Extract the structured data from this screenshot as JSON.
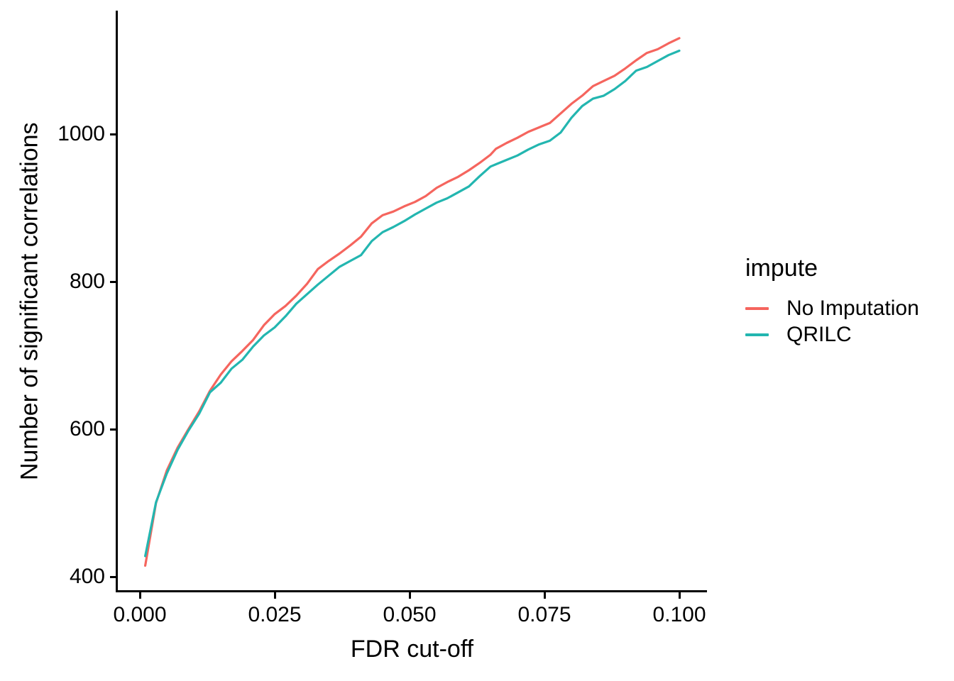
{
  "figure": {
    "background": "#ffffff",
    "axis_color": "#000000",
    "text_color": "#000000"
  },
  "chart_data": {
    "type": "line",
    "title": "",
    "xlabel": "FDR cut-off",
    "ylabel": "Number of significant correlations",
    "xlim": [
      0,
      0.1
    ],
    "ylim": [
      400,
      1140
    ],
    "grid": "off",
    "x_ticks": {
      "labels": [
        "0.000",
        "0.025",
        "0.050",
        "0.075",
        "0.100"
      ],
      "values": [
        0,
        0.025,
        0.05,
        0.075,
        0.1
      ]
    },
    "y_ticks": {
      "labels": [
        "400",
        "600",
        "800",
        "1000"
      ],
      "values": [
        400,
        600,
        800,
        1000
      ]
    },
    "legend": {
      "title": "impute",
      "position": "right",
      "entries": [
        {
          "label": "No Imputation",
          "color": "#F5655E"
        },
        {
          "label": "QRILC",
          "color": "#23B6B0"
        }
      ]
    },
    "x": [
      0.001,
      0.003,
      0.005,
      0.007,
      0.009,
      0.011,
      0.013,
      0.015,
      0.017,
      0.019,
      0.021,
      0.023,
      0.025,
      0.027,
      0.029,
      0.031,
      0.033,
      0.035,
      0.037,
      0.039,
      0.041,
      0.043,
      0.045,
      0.047,
      0.049,
      0.051,
      0.053,
      0.055,
      0.057,
      0.059,
      0.061,
      0.063,
      0.065,
      0.066,
      0.068,
      0.07,
      0.072,
      0.074,
      0.076,
      0.078,
      0.08,
      0.082,
      0.084,
      0.086,
      0.088,
      0.09,
      0.092,
      0.094,
      0.096,
      0.098,
      0.1
    ],
    "series": [
      {
        "name": "No Imputation",
        "color": "#F5655E",
        "values": [
          415,
          500,
          544,
          575,
          600,
          624,
          652,
          674,
          692,
          706,
          721,
          741,
          756,
          767,
          781,
          797,
          817,
          828,
          838,
          849,
          861,
          879,
          890,
          895,
          902,
          908,
          916,
          927,
          935,
          942,
          951,
          961,
          972,
          980,
          988,
          995,
          1003,
          1009,
          1015,
          1028,
          1041,
          1052,
          1065,
          1072,
          1079,
          1089,
          1100,
          1110,
          1115,
          1123,
          1130
        ]
      },
      {
        "name": "QRILC",
        "color": "#23B6B0",
        "values": [
          428,
          501,
          540,
          572,
          598,
          621,
          650,
          663,
          682,
          694,
          712,
          727,
          738,
          753,
          770,
          783,
          796,
          808,
          820,
          828,
          836,
          855,
          867,
          874,
          882,
          891,
          899,
          907,
          913,
          921,
          929,
          943,
          956,
          959,
          965,
          971,
          979,
          986,
          991,
          1002,
          1022,
          1038,
          1048,
          1052,
          1061,
          1072,
          1086,
          1091,
          1099,
          1107,
          1113
        ]
      }
    ]
  }
}
